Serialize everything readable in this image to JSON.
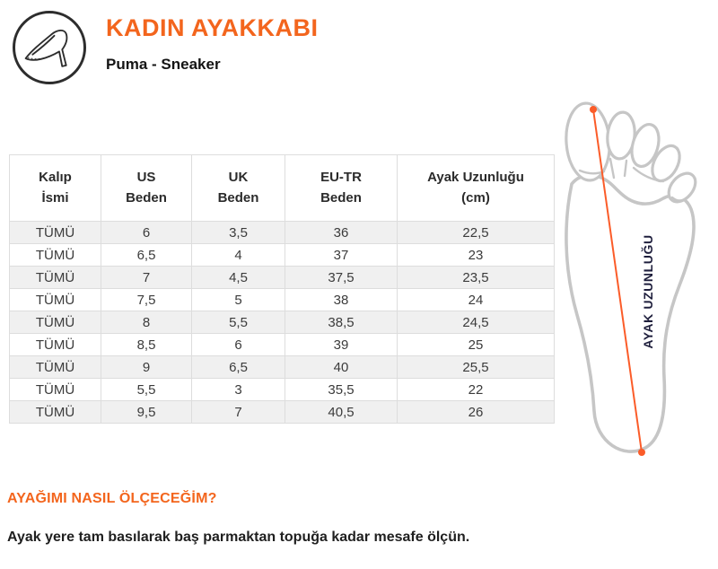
{
  "header": {
    "title": "KADIN AYAKKABI",
    "subtitle": "Puma - Sneaker",
    "icon": "high-heel-shoe-icon"
  },
  "table": {
    "columns": [
      "Kalıp\nİsmi",
      "US\nBeden",
      "UK\nBeden",
      "EU-TR\nBeden",
      "Ayak Uzunluğu\n(cm)"
    ],
    "rows": [
      [
        "TÜMÜ",
        "6",
        "3,5",
        "36",
        "22,5"
      ],
      [
        "TÜMÜ",
        "6,5",
        "4",
        "37",
        "23"
      ],
      [
        "TÜMÜ",
        "7",
        "4,5",
        "37,5",
        "23,5"
      ],
      [
        "TÜMÜ",
        "7,5",
        "5",
        "38",
        "24"
      ],
      [
        "TÜMÜ",
        "8",
        "5,5",
        "38,5",
        "24,5"
      ],
      [
        "TÜMÜ",
        "8,5",
        "6",
        "39",
        "25"
      ],
      [
        "TÜMÜ",
        "9",
        "6,5",
        "40",
        "25,5"
      ],
      [
        "TÜMÜ",
        "5,5",
        "3",
        "35,5",
        "22"
      ],
      [
        "TÜMÜ",
        "9,5",
        "7",
        "40,5",
        "26"
      ]
    ]
  },
  "foot_diagram": {
    "label": "AYAK UZUNLUĞU"
  },
  "measure_section": {
    "heading": "AYAĞIMI NASIL ÖLÇECEĞİM?",
    "body": "Ayak yere tam basılarak baş parmaktan topuğa kadar mesafe ölçün."
  },
  "colors": {
    "accent": "#f3651d",
    "measure_line": "#fb5c29",
    "foot_outline": "#c6c6c6",
    "foot_label": "#1e1e3c",
    "table_border": "#dddddd",
    "row_alt_background": "#f0f0f0"
  }
}
